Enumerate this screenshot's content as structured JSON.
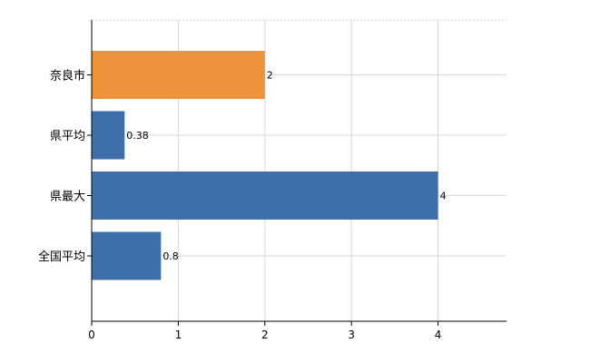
{
  "chart_data": {
    "type": "bar",
    "orientation": "horizontal",
    "categories": [
      "奈良市",
      "県平均",
      "県最大",
      "全国平均"
    ],
    "values": [
      2,
      0.38,
      4,
      0.8
    ],
    "value_labels": [
      "2",
      "0.38",
      "4",
      "0.8"
    ],
    "colors": [
      "#f0923a",
      "#3f6faa",
      "#3f6faa",
      "#3f6faa"
    ],
    "title": "",
    "xlabel": "",
    "ylabel": "",
    "xlim": [
      0,
      4.8
    ],
    "xticks": [
      0,
      1,
      2,
      3,
      4
    ],
    "xtick_labels": [
      "0",
      "1",
      "2",
      "3",
      "4"
    ],
    "grid": true
  }
}
